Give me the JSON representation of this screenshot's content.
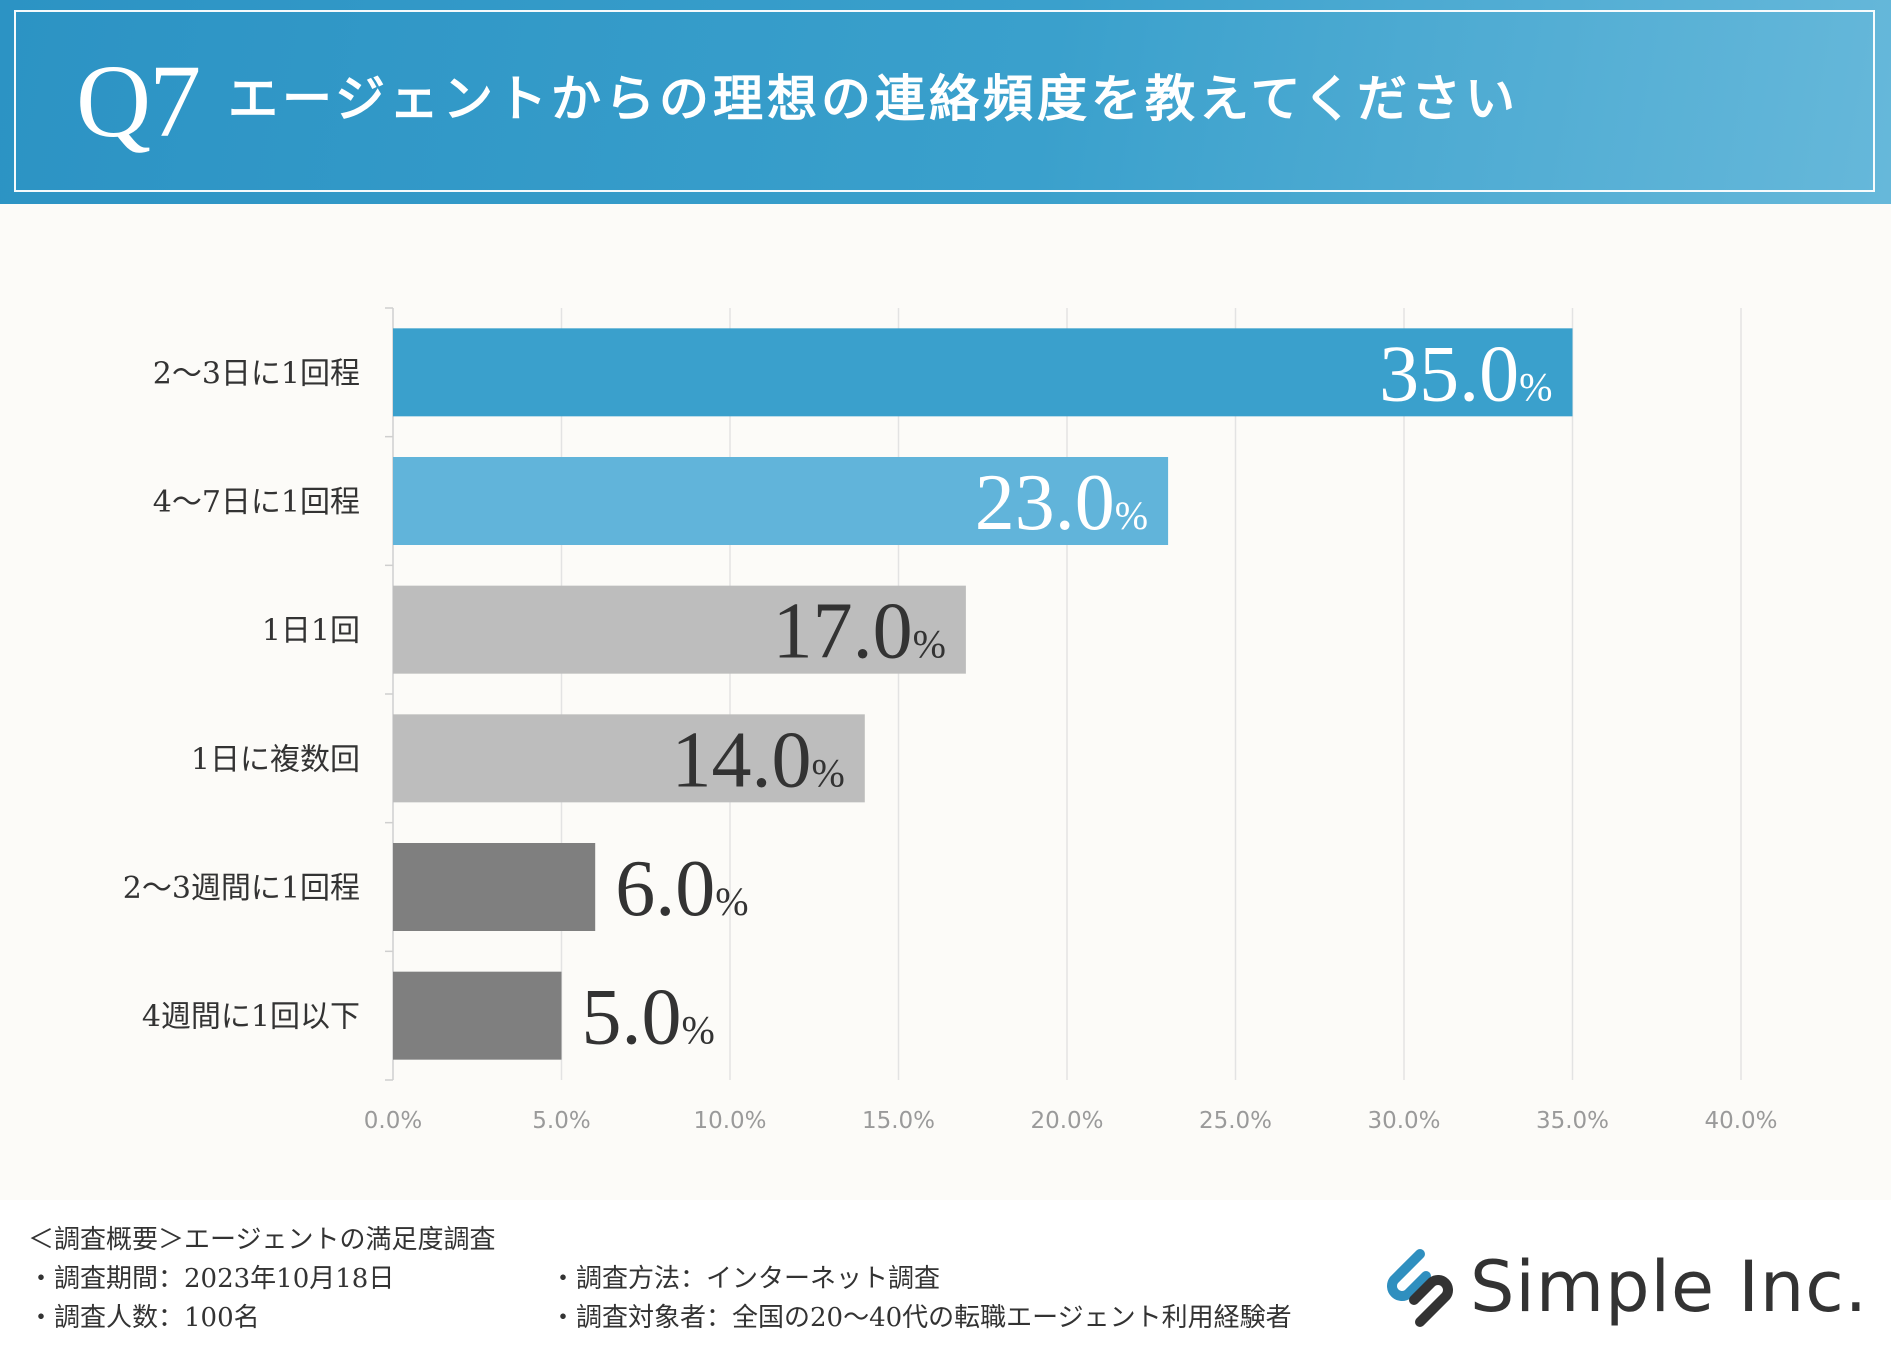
{
  "header": {
    "question_number": "Q7",
    "title": "エージェントからの理想の連絡頻度を教えてください"
  },
  "chart_data": {
    "type": "bar",
    "orientation": "horizontal",
    "title": "エージェントからの理想の連絡頻度を教えてください",
    "xlabel": "",
    "ylabel": "",
    "xlim": [
      0,
      40
    ],
    "grid": true,
    "x_tick_labels": [
      "0.0%",
      "5.0%",
      "10.0%",
      "15.0%",
      "20.0%",
      "25.0%",
      "30.0%",
      "35.0%",
      "40.0%"
    ],
    "x_ticks": [
      0,
      5,
      10,
      15,
      20,
      25,
      30,
      35,
      40
    ],
    "categories": [
      "2〜3日に1回程",
      "4〜7日に1回程",
      "1日1回",
      "1日に複数回",
      "2〜3週間に1回程",
      "4週間に1回以下"
    ],
    "values": [
      35.0,
      23.0,
      17.0,
      14.0,
      6.0,
      5.0
    ],
    "value_labels": [
      "35.0",
      "23.0",
      "17.0",
      "14.0",
      "6.0",
      "5.0"
    ],
    "percent_sign": "%",
    "colors": [
      "#3aa0cc",
      "#61b4da",
      "#bdbdbd",
      "#bdbdbd",
      "#7f7f7f",
      "#7f7f7f"
    ],
    "label_colors": [
      "#ffffff",
      "#ffffff",
      "#333333",
      "#333333",
      "#333333",
      "#333333"
    ],
    "label_inside": [
      true,
      true,
      true,
      true,
      false,
      false
    ]
  },
  "footer": {
    "summary": "＜調査概要＞エージェントの満足度調査",
    "period": "・調査期間：2023年10月18日",
    "respondents": "・調査人数：100名",
    "method": "・調査方法：インターネット調査",
    "target": "・調査対象者：全国の20〜40代の転職エージェント利用経験者",
    "company": "Simple Inc.",
    "logo_icon": "simple-inc-logo-icon"
  },
  "colors": {
    "header_bg": "#3aa0cc",
    "grid": "#e3e3e3",
    "background": "#fcfbf8"
  }
}
